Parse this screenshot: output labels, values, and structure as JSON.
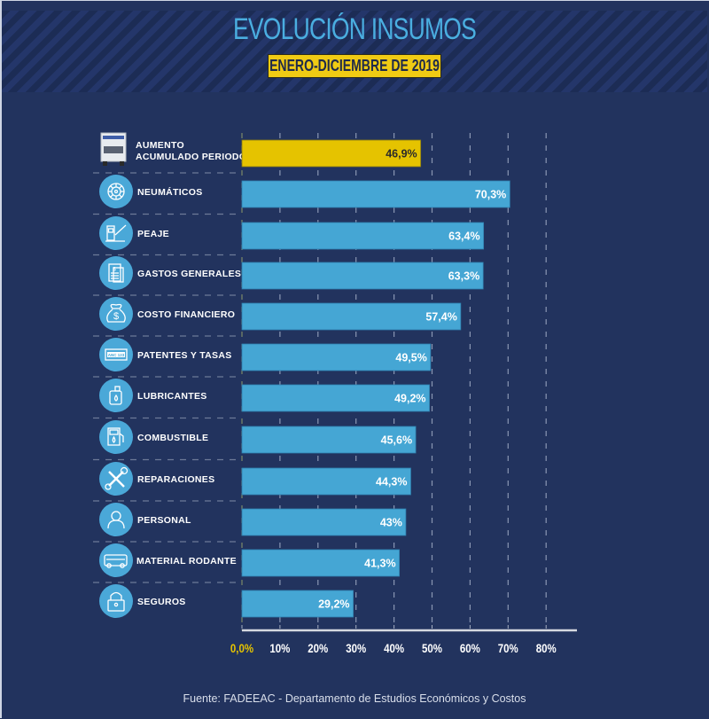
{
  "header": {
    "title": "EVOLUCIÓN INSUMOS",
    "subtitle": "ENERO-DICIEMBRE DE 2019"
  },
  "colors": {
    "background": "#22335e",
    "title": "#4aaee0",
    "highlight_bar": "#e5c300",
    "bar": "#45a6d4",
    "zero_tick": "#e5c300"
  },
  "chart_data": {
    "type": "bar",
    "orientation": "horizontal",
    "title": "EVOLUCIÓN INSUMOS",
    "subtitle": "ENERO-DICIEMBRE DE 2019",
    "xlabel": "",
    "ylabel": "",
    "xlim": [
      0,
      80
    ],
    "grid": true,
    "categories": [
      {
        "label_lines": [
          "AUMENTO",
          "ACUMULADO PERIODO"
        ],
        "icon": "truck-icon",
        "value": 46.9,
        "label": "46,9%",
        "highlight": true
      },
      {
        "label_lines": [
          "NEUMÁTICOS"
        ],
        "icon": "tire-icon",
        "value": 70.3,
        "label": "70,3%",
        "highlight": false
      },
      {
        "label_lines": [
          "PEAJE"
        ],
        "icon": "toll-booth-icon",
        "value": 63.4,
        "label": "63,4%",
        "highlight": false
      },
      {
        "label_lines": [
          "GASTOS GENERALES"
        ],
        "icon": "receipt-icon",
        "value": 63.3,
        "label": "63,3%",
        "highlight": false
      },
      {
        "label_lines": [
          "COSTO FINANCIERO"
        ],
        "icon": "money-bag-icon",
        "value": 57.4,
        "label": "57,4%",
        "highlight": false
      },
      {
        "label_lines": [
          "PATENTES Y TASAS"
        ],
        "icon": "license-plate-icon",
        "value": 49.5,
        "label": "49,5%",
        "highlight": false
      },
      {
        "label_lines": [
          "LUBRICANTES"
        ],
        "icon": "oil-can-icon",
        "value": 49.2,
        "label": "49,2%",
        "highlight": false
      },
      {
        "label_lines": [
          "COMBUSTIBLE"
        ],
        "icon": "fuel-pump-icon",
        "value": 45.6,
        "label": "45,6%",
        "highlight": false
      },
      {
        "label_lines": [
          "REPARACIONES"
        ],
        "icon": "tools-icon",
        "value": 44.3,
        "label": "44,3%",
        "highlight": false
      },
      {
        "label_lines": [
          "PERSONAL"
        ],
        "icon": "person-icon",
        "value": 43,
        "label": "43%",
        "highlight": false
      },
      {
        "label_lines": [
          "MATERIAL RODANTE"
        ],
        "icon": "bus-icon",
        "value": 41.3,
        "label": "41,3%",
        "highlight": false
      },
      {
        "label_lines": [
          "SEGUROS"
        ],
        "icon": "padlock-icon",
        "value": 29.2,
        "label": "29,2%",
        "highlight": false
      }
    ],
    "x_ticks": [
      {
        "value": 0,
        "label": "0,0%"
      },
      {
        "value": 10,
        "label": "10%"
      },
      {
        "value": 20,
        "label": "20%"
      },
      {
        "value": 30,
        "label": "30%"
      },
      {
        "value": 40,
        "label": "40%"
      },
      {
        "value": 50,
        "label": "50%"
      },
      {
        "value": 60,
        "label": "60%"
      },
      {
        "value": 70,
        "label": "70%"
      },
      {
        "value": 80,
        "label": "80%"
      }
    ]
  },
  "footer": {
    "source": "Fuente: FADEEAC - Departamento de Estudios Económicos y Costos"
  }
}
